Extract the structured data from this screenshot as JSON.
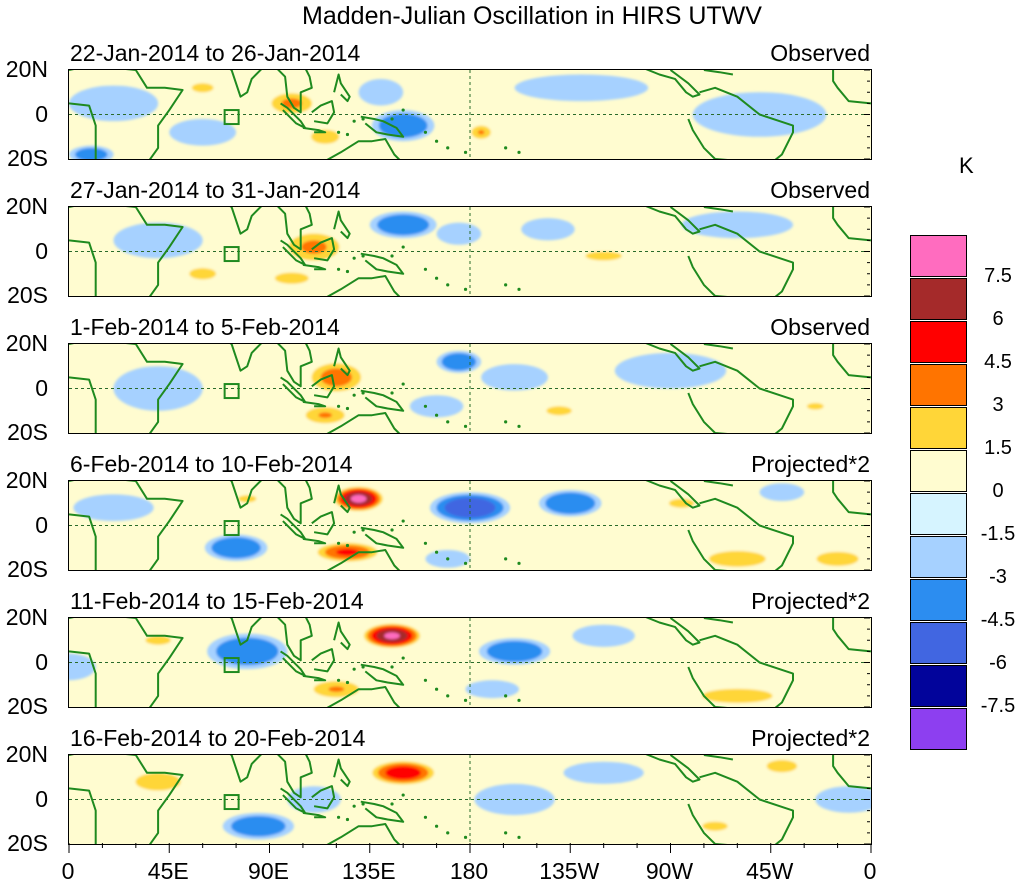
{
  "chart_data": {
    "type": "heatmap",
    "title": "Madden-Julian Oscillation in HIRS UTWV",
    "unit": "K",
    "x_ticks": [
      "0",
      "45E",
      "90E",
      "135E",
      "180",
      "135W",
      "90W",
      "45W",
      "0"
    ],
    "y_ticks": [
      "20N",
      "0",
      "20S"
    ],
    "colorbar_labels": [
      "7.5",
      "6",
      "4.5",
      "3",
      "1.5",
      "0",
      "-1.5",
      "-3",
      "-4.5",
      "-6",
      "-7.5"
    ],
    "colorbar_colors": [
      "#ff6cbf",
      "#a52a2a",
      "#ff0000",
      "#ff7400",
      "#ffd638",
      "#fffcd0",
      "#d6f4ff",
      "#a6d1ff",
      "#2c8df0",
      "#4166e1",
      "#02049b",
      "#8d3ff0"
    ],
    "panels": [
      {
        "dates": "22-Jan-2014 to 26-Jan-2014",
        "kind": "Observed",
        "anomalies": [
          {
            "lon": 100,
            "lat": 5,
            "rl": 12,
            "rt": 6,
            "v": 3.5
          },
          {
            "lon": 115,
            "lat": -10,
            "rl": 10,
            "rt": 5,
            "v": 2.5
          },
          {
            "lon": 60,
            "lat": 12,
            "rl": 12,
            "rt": 5,
            "v": 1.8
          },
          {
            "lon": 150,
            "lat": -5,
            "rl": 14,
            "rt": 7,
            "v": -3.8
          },
          {
            "lon": 140,
            "lat": 10,
            "rl": 10,
            "rt": 6,
            "v": -2.5
          },
          {
            "lon": 20,
            "lat": 5,
            "rl": 20,
            "rt": 8,
            "v": -2.0
          },
          {
            "lon": 60,
            "lat": -8,
            "rl": 15,
            "rt": 6,
            "v": -1.8
          },
          {
            "lon": 185,
            "lat": -8,
            "rl": 6,
            "rt": 4,
            "v": 3.2
          },
          {
            "lon": 230,
            "lat": 12,
            "rl": 30,
            "rt": 6,
            "v": -1.8
          },
          {
            "lon": 310,
            "lat": 0,
            "rl": 30,
            "rt": 10,
            "v": -1.6
          },
          {
            "lon": 10,
            "lat": -18,
            "rl": 10,
            "rt": 4,
            "v": -3.2
          }
        ]
      },
      {
        "dates": "27-Jan-2014 to 31-Jan-2014",
        "kind": "Observed",
        "anomalies": [
          {
            "lon": 110,
            "lat": 2,
            "rl": 15,
            "rt": 8,
            "v": 3.5
          },
          {
            "lon": 100,
            "lat": -12,
            "rl": 12,
            "rt": 4,
            "v": 2.5
          },
          {
            "lon": 150,
            "lat": 12,
            "rl": 15,
            "rt": 6,
            "v": -3.8
          },
          {
            "lon": 175,
            "lat": 8,
            "rl": 10,
            "rt": 5,
            "v": -2.2
          },
          {
            "lon": 40,
            "lat": 5,
            "rl": 20,
            "rt": 8,
            "v": -1.8
          },
          {
            "lon": 60,
            "lat": -10,
            "rl": 12,
            "rt": 5,
            "v": 2.0
          },
          {
            "lon": 240,
            "lat": -2,
            "rl": 20,
            "rt": 5,
            "v": 1.8
          },
          {
            "lon": 300,
            "lat": 12,
            "rl": 25,
            "rt": 6,
            "v": -1.6
          },
          {
            "lon": 215,
            "lat": 10,
            "rl": 12,
            "rt": 5,
            "v": -1.7
          }
        ]
      },
      {
        "dates": "1-Feb-2014 to 5-Feb-2014",
        "kind": "Observed",
        "anomalies": [
          {
            "lon": 120,
            "lat": 5,
            "rl": 14,
            "rt": 8,
            "v": 4.0
          },
          {
            "lon": 115,
            "lat": -12,
            "rl": 12,
            "rt": 5,
            "v": 3.2
          },
          {
            "lon": 175,
            "lat": 12,
            "rl": 10,
            "rt": 5,
            "v": -3.8
          },
          {
            "lon": 200,
            "lat": 5,
            "rl": 15,
            "rt": 6,
            "v": -2.5
          },
          {
            "lon": 165,
            "lat": -8,
            "rl": 12,
            "rt": 5,
            "v": -2.0
          },
          {
            "lon": 40,
            "lat": 0,
            "rl": 20,
            "rt": 10,
            "v": -1.8
          },
          {
            "lon": 270,
            "lat": 8,
            "rl": 25,
            "rt": 8,
            "v": -1.7
          },
          {
            "lon": 220,
            "lat": -10,
            "rl": 14,
            "rt": 5,
            "v": 1.8
          },
          {
            "lon": 335,
            "lat": -8,
            "rl": 15,
            "rt": 6,
            "v": 1.6
          }
        ]
      },
      {
        "dates": "6-Feb-2014 to 10-Feb-2014",
        "kind": "Projected*2",
        "anomalies": [
          {
            "lon": 130,
            "lat": 12,
            "rl": 12,
            "rt": 6,
            "v": 8.2
          },
          {
            "lon": 125,
            "lat": -12,
            "rl": 16,
            "rt": 5,
            "v": 5.0
          },
          {
            "lon": 180,
            "lat": 8,
            "rl": 18,
            "rt": 7,
            "v": -5.0
          },
          {
            "lon": 225,
            "lat": 10,
            "rl": 14,
            "rt": 6,
            "v": -4.2
          },
          {
            "lon": 75,
            "lat": -10,
            "rl": 14,
            "rt": 6,
            "v": -4.0
          },
          {
            "lon": 20,
            "lat": 8,
            "rl": 18,
            "rt": 6,
            "v": -2.2
          },
          {
            "lon": 80,
            "lat": 12,
            "rl": 10,
            "rt": 4,
            "v": 1.8
          },
          {
            "lon": 300,
            "lat": -15,
            "rl": 18,
            "rt": 5,
            "v": 3.0
          },
          {
            "lon": 345,
            "lat": -15,
            "rl": 15,
            "rt": 5,
            "v": 2.5
          },
          {
            "lon": 275,
            "lat": 10,
            "rl": 14,
            "rt": 5,
            "v": 1.8
          },
          {
            "lon": 320,
            "lat": 15,
            "rl": 10,
            "rt": 4,
            "v": -1.7
          },
          {
            "lon": 170,
            "lat": -15,
            "rl": 10,
            "rt": 4,
            "v": -2.2
          }
        ]
      },
      {
        "dates": "11-Feb-2014 to 15-Feb-2014",
        "kind": "Projected*2",
        "anomalies": [
          {
            "lon": 145,
            "lat": 12,
            "rl": 14,
            "rt": 6,
            "v": 8.0
          },
          {
            "lon": 120,
            "lat": -12,
            "rl": 14,
            "rt": 5,
            "v": 3.2
          },
          {
            "lon": 80,
            "lat": 5,
            "rl": 18,
            "rt": 8,
            "v": -3.8
          },
          {
            "lon": 40,
            "lat": 10,
            "rl": 14,
            "rt": 5,
            "v": 1.8
          },
          {
            "lon": 200,
            "lat": 5,
            "rl": 16,
            "rt": 6,
            "v": -3.8
          },
          {
            "lon": 240,
            "lat": 12,
            "rl": 14,
            "rt": 5,
            "v": -2.2
          },
          {
            "lon": 300,
            "lat": -15,
            "rl": 25,
            "rt": 5,
            "v": 2.5
          },
          {
            "lon": 190,
            "lat": -12,
            "rl": 12,
            "rt": 4,
            "v": -1.8
          },
          {
            "lon": 0,
            "lat": -2,
            "rl": 12,
            "rt": 6,
            "v": -1.8
          }
        ]
      },
      {
        "dates": "16-Feb-2014 to 20-Feb-2014",
        "kind": "Projected*2",
        "anomalies": [
          {
            "lon": 150,
            "lat": 12,
            "rl": 16,
            "rt": 6,
            "v": 6.0
          },
          {
            "lon": 85,
            "lat": -12,
            "rl": 16,
            "rt": 6,
            "v": -3.6
          },
          {
            "lon": 40,
            "lat": 8,
            "rl": 18,
            "rt": 7,
            "v": 2.2
          },
          {
            "lon": 110,
            "lat": 0,
            "rl": 12,
            "rt": 6,
            "v": -1.8
          },
          {
            "lon": 200,
            "lat": 0,
            "rl": 18,
            "rt": 7,
            "v": -1.8
          },
          {
            "lon": 320,
            "lat": 15,
            "rl": 10,
            "rt": 4,
            "v": 2.8
          },
          {
            "lon": 290,
            "lat": -12,
            "rl": 14,
            "rt": 5,
            "v": 1.8
          },
          {
            "lon": 240,
            "lat": 12,
            "rl": 18,
            "rt": 5,
            "v": -1.7
          },
          {
            "lon": 350,
            "lat": 0,
            "rl": 15,
            "rt": 6,
            "v": -1.7
          }
        ]
      }
    ]
  }
}
